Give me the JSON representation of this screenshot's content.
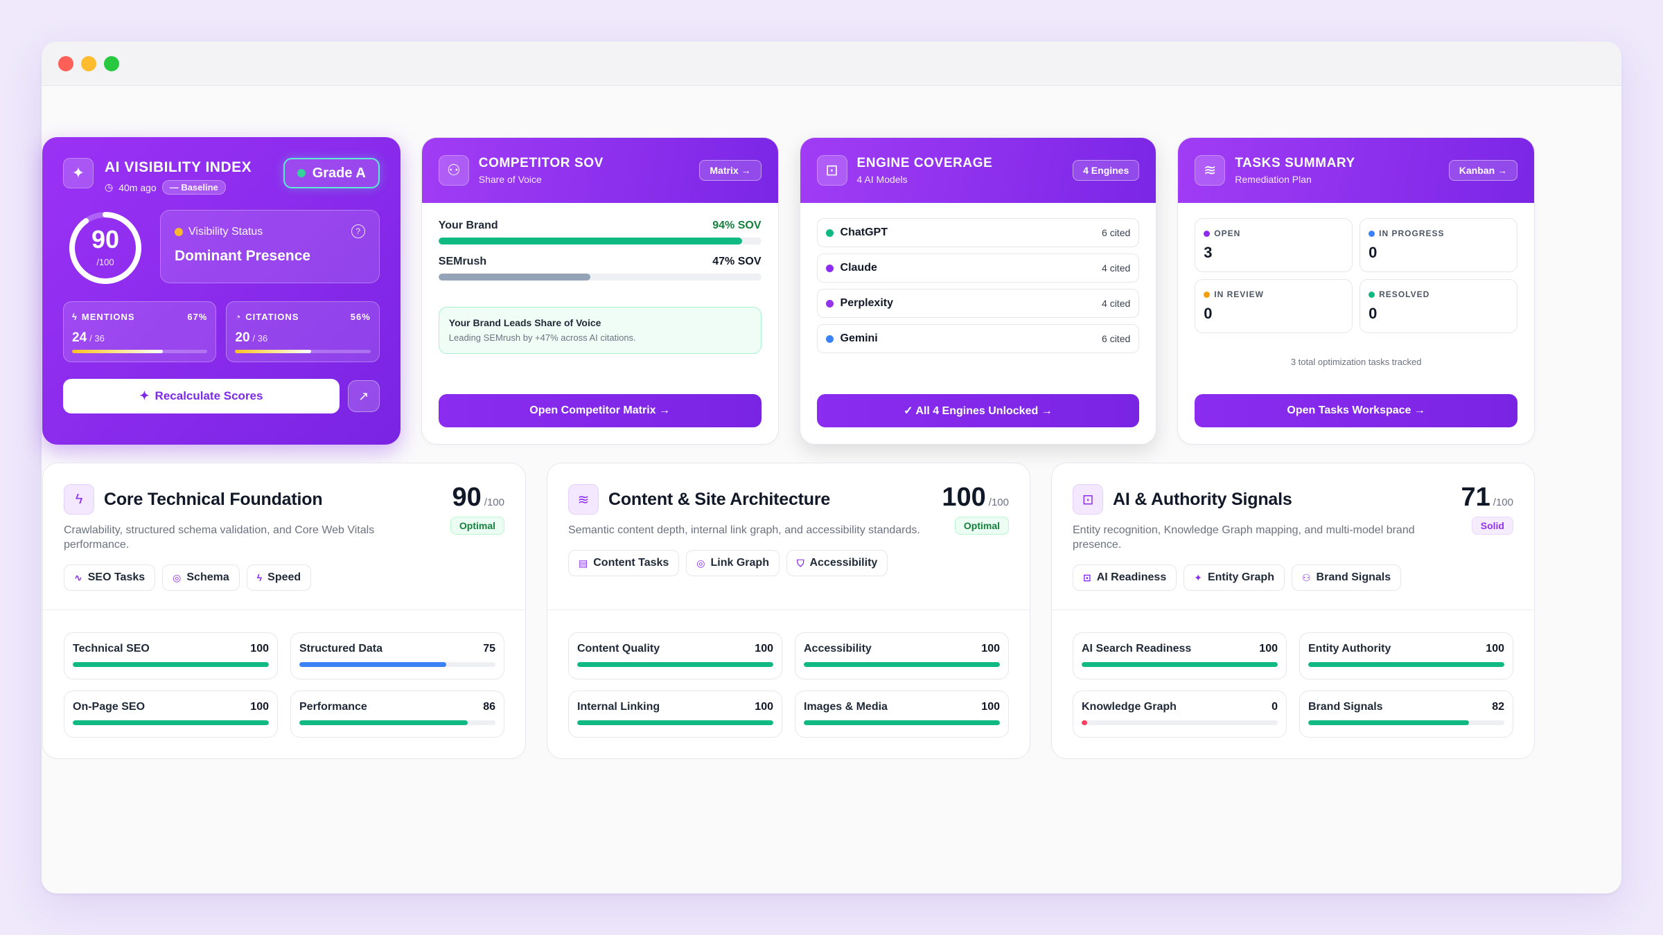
{
  "visibility": {
    "title": "AI VISIBILITY INDEX",
    "updated": "40m ago",
    "baseline": "— Baseline",
    "grade": "Grade A",
    "score": "90",
    "score_den": "/100",
    "score_fraction": 0.9,
    "status_label": "Visibility Status",
    "status_value": "Dominant Presence",
    "mentions": {
      "label": "MENTIONS",
      "pct": "67%",
      "value": "24",
      "den": "/ 36",
      "fraction": 0.67
    },
    "citations": {
      "label": "CITATIONS",
      "pct": "56%",
      "value": "20",
      "den": "/ 36",
      "fraction": 0.56
    },
    "recalc_label": "Recalculate Scores"
  },
  "competitor": {
    "title": "COMPETITOR SOV",
    "subtitle": "Share of Voice",
    "pill": "Matrix →",
    "rows": [
      {
        "name": "Your Brand",
        "pct": "94% SOV",
        "fraction": 0.94,
        "color": "#10b981"
      },
      {
        "name": "SEMrush",
        "pct": "47% SOV",
        "fraction": 0.47,
        "color": "#94a3b8"
      }
    ],
    "lead_title": "Your Brand Leads Share of Voice",
    "lead_sub": "Leading SEMrush by +47% across AI citations.",
    "button": "Open Competitor Matrix →"
  },
  "engines": {
    "title": "ENGINE COVERAGE",
    "subtitle": "4 AI Models",
    "pill": "4 Engines",
    "rows": [
      {
        "name": "ChatGPT",
        "count": "6 cited",
        "color": "#10b981"
      },
      {
        "name": "Claude",
        "count": "4 cited",
        "color": "#8b2cf0"
      },
      {
        "name": "Perplexity",
        "count": "4 cited",
        "color": "#9333ea"
      },
      {
        "name": "Gemini",
        "count": "6 cited",
        "color": "#3b82f6"
      }
    ],
    "button": "✓ All 4 Engines Unlocked →"
  },
  "tasks": {
    "title": "TASKS SUMMARY",
    "subtitle": "Remediation Plan",
    "pill": "Kanban →",
    "items": [
      {
        "label": "OPEN",
        "value": "3",
        "color": "#8b2cf0"
      },
      {
        "label": "IN PROGRESS",
        "value": "0",
        "color": "#3b82f6"
      },
      {
        "label": "IN REVIEW",
        "value": "0",
        "color": "#f59e0b"
      },
      {
        "label": "RESOLVED",
        "value": "0",
        "color": "#10b981"
      }
    ],
    "note": "3 total optimization tasks tracked",
    "button": "Open Tasks Workspace →"
  },
  "pillars": [
    {
      "title": "Core Technical Foundation",
      "icon": "bolt-icon",
      "score": "90",
      "den": "/100",
      "badge": "Optimal",
      "badge_style": "green",
      "desc": "Crawlability, structured schema validation, and Core Web Vitals performance.",
      "tags": [
        {
          "label": "SEO Tasks",
          "icon": "∿"
        },
        {
          "label": "Schema",
          "icon": "◎"
        },
        {
          "label": "Speed",
          "icon": "ϟ"
        }
      ],
      "metrics": [
        {
          "label": "Technical SEO",
          "value": "100",
          "fraction": 1.0,
          "color": "#10b981"
        },
        {
          "label": "Structured Data",
          "value": "75",
          "fraction": 0.75,
          "color": "#3b82f6"
        },
        {
          "label": "On-Page SEO",
          "value": "100",
          "fraction": 1.0,
          "color": "#10b981"
        },
        {
          "label": "Performance",
          "value": "86",
          "fraction": 0.86,
          "color": "#10b981"
        }
      ]
    },
    {
      "title": "Content & Site Architecture",
      "icon": "layers-icon",
      "score": "100",
      "den": "/100",
      "badge": "Optimal",
      "badge_style": "green",
      "desc": "Semantic content depth, internal link graph, and accessibility standards.",
      "tags": [
        {
          "label": "Content Tasks",
          "icon": "▤"
        },
        {
          "label": "Link Graph",
          "icon": "◎"
        },
        {
          "label": "Accessibility",
          "icon": "⛉"
        }
      ],
      "metrics": [
        {
          "label": "Content Quality",
          "value": "100",
          "fraction": 1.0,
          "color": "#10b981"
        },
        {
          "label": "Accessibility",
          "value": "100",
          "fraction": 1.0,
          "color": "#10b981"
        },
        {
          "label": "Internal Linking",
          "value": "100",
          "fraction": 1.0,
          "color": "#10b981"
        },
        {
          "label": "Images & Media",
          "value": "100",
          "fraction": 1.0,
          "color": "#10b981"
        }
      ]
    },
    {
      "title": "AI & Authority Signals",
      "icon": "bot-icon",
      "score": "71",
      "den": "/100",
      "badge": "Solid",
      "badge_style": "purple",
      "desc": "Entity recognition, Knowledge Graph mapping, and multi-model brand presence.",
      "tags": [
        {
          "label": "AI Readiness",
          "icon": "⊡"
        },
        {
          "label": "Entity Graph",
          "icon": "✦"
        },
        {
          "label": "Brand Signals",
          "icon": "⚇"
        }
      ],
      "metrics": [
        {
          "label": "AI Search Readiness",
          "value": "100",
          "fraction": 1.0,
          "color": "#10b981"
        },
        {
          "label": "Entity Authority",
          "value": "100",
          "fraction": 1.0,
          "color": "#10b981"
        },
        {
          "label": "Knowledge Graph",
          "value": "0",
          "fraction": 0.0,
          "color": "#f43f5e"
        },
        {
          "label": "Brand Signals",
          "value": "82",
          "fraction": 0.82,
          "color": "#10b981"
        }
      ]
    }
  ]
}
